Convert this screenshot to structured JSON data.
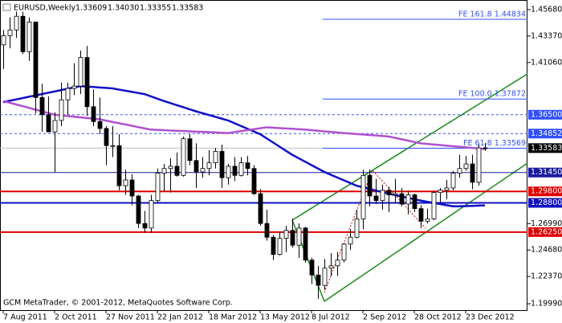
{
  "chart_data": {
    "type": "candlestick",
    "title": "EURUSD,Weekly",
    "title_values": [
      "1.33609",
      "1.34030",
      "1.33355",
      "1.33583"
    ],
    "footer": "GCM MetaTrader, © 2001-2012, MetaQuotes Software Corp.",
    "categories": [
      "7 Aug 2011",
      null,
      null,
      null,
      null,
      null,
      null,
      null,
      "2 Oct 2011",
      null,
      null,
      null,
      null,
      null,
      null,
      null,
      "27 Nov 2011",
      null,
      null,
      null,
      null,
      null,
      null,
      null,
      "22 Jan 2012",
      null,
      null,
      null,
      null,
      null,
      null,
      null,
      "18 Mar 2012",
      null,
      null,
      null,
      null,
      null,
      null,
      null,
      "13 May 2012",
      null,
      null,
      null,
      null,
      null,
      null,
      null,
      "8 Jul 2012",
      null,
      null,
      null,
      null,
      null,
      null,
      null,
      "2 Sep 2012",
      null,
      null,
      null,
      null,
      null,
      null,
      null,
      "28 Oct 2012",
      null,
      null,
      null,
      null,
      null,
      null,
      null,
      "23 Dec 2012",
      null,
      null,
      null
    ],
    "open": [
      1.426,
      1.434,
      1.439,
      1.451,
      1.42,
      1.446,
      1.38,
      1.365,
      1.35,
      1.36,
      1.378,
      1.388,
      1.39,
      1.415,
      1.372,
      1.359,
      1.353,
      1.338,
      1.338,
      1.303,
      1.308,
      1.294,
      1.27,
      1.266,
      1.29,
      1.314,
      1.318,
      1.32,
      1.312,
      1.344,
      1.325,
      1.315,
      1.318,
      1.323,
      1.333,
      1.31,
      1.32,
      1.312,
      1.323,
      1.318,
      1.296,
      1.27,
      1.258,
      1.243,
      1.257,
      1.264,
      1.251,
      1.266,
      1.238,
      1.225,
      1.216,
      1.231,
      1.233,
      1.238,
      1.252,
      1.258,
      1.274,
      1.312,
      1.294,
      1.29,
      1.299,
      1.295,
      1.296,
      1.287,
      1.295,
      1.283,
      1.272,
      1.274,
      1.297,
      1.299,
      1.301,
      1.314,
      1.318,
      1.322,
      1.306,
      1.33609
    ],
    "high": [
      1.439,
      1.45,
      1.455,
      1.455,
      1.45,
      1.446,
      1.392,
      1.381,
      1.367,
      1.393,
      1.393,
      1.41,
      1.421,
      1.425,
      1.387,
      1.38,
      1.355,
      1.355,
      1.348,
      1.317,
      1.313,
      1.295,
      1.281,
      1.295,
      1.318,
      1.322,
      1.327,
      1.332,
      1.346,
      1.348,
      1.34,
      1.328,
      1.334,
      1.336,
      1.339,
      1.322,
      1.328,
      1.328,
      1.329,
      1.321,
      1.3,
      1.282,
      1.26,
      1.263,
      1.268,
      1.274,
      1.27,
      1.267,
      1.24,
      1.233,
      1.239,
      1.244,
      1.245,
      1.253,
      1.265,
      1.282,
      1.317,
      1.317,
      1.309,
      1.304,
      1.302,
      1.309,
      1.301,
      1.299,
      1.296,
      1.286,
      1.283,
      1.298,
      1.301,
      1.308,
      1.316,
      1.33,
      1.329,
      1.33,
      1.339,
      1.3403
    ],
    "low": [
      1.405,
      1.423,
      1.432,
      1.418,
      1.412,
      1.366,
      1.35,
      1.35,
      1.315,
      1.355,
      1.365,
      1.382,
      1.383,
      1.364,
      1.355,
      1.348,
      1.321,
      1.328,
      1.299,
      1.295,
      1.286,
      1.266,
      1.262,
      1.262,
      1.288,
      1.298,
      1.297,
      1.311,
      1.311,
      1.321,
      1.301,
      1.31,
      1.312,
      1.318,
      1.301,
      1.304,
      1.307,
      1.311,
      1.312,
      1.295,
      1.268,
      1.255,
      1.238,
      1.242,
      1.245,
      1.249,
      1.24,
      1.236,
      1.217,
      1.204,
      1.212,
      1.224,
      1.224,
      1.236,
      1.247,
      1.257,
      1.265,
      1.285,
      1.287,
      1.282,
      1.28,
      1.288,
      1.285,
      1.278,
      1.28,
      1.266,
      1.27,
      1.273,
      1.288,
      1.291,
      1.299,
      1.31,
      1.316,
      1.3,
      1.303,
      1.33355
    ],
    "close": [
      1.434,
      1.439,
      1.451,
      1.42,
      1.446,
      1.38,
      1.365,
      1.35,
      1.36,
      1.378,
      1.388,
      1.39,
      1.415,
      1.372,
      1.359,
      1.353,
      1.338,
      1.338,
      1.303,
      1.308,
      1.294,
      1.27,
      1.266,
      1.29,
      1.314,
      1.318,
      1.32,
      1.312,
      1.344,
      1.325,
      1.315,
      1.318,
      1.323,
      1.333,
      1.31,
      1.32,
      1.312,
      1.323,
      1.318,
      1.296,
      1.27,
      1.258,
      1.243,
      1.257,
      1.264,
      1.251,
      1.266,
      1.238,
      1.225,
      1.216,
      1.231,
      1.233,
      1.238,
      1.252,
      1.258,
      1.274,
      1.312,
      1.294,
      1.29,
      1.299,
      1.295,
      1.296,
      1.287,
      1.295,
      1.283,
      1.272,
      1.274,
      1.297,
      1.299,
      1.301,
      1.314,
      1.318,
      1.322,
      1.306,
      1.336,
      1.33583
    ],
    "overlays": [
      {
        "color": "#1010c8",
        "values": [
          1.376,
          1.3772,
          1.3783,
          1.3795,
          1.3807,
          1.3818,
          1.383,
          1.3842,
          1.3853,
          1.3865,
          1.3877,
          1.3888,
          1.39,
          1.3896,
          1.3892,
          1.3888,
          1.3884,
          1.388,
          1.387,
          1.386,
          1.385,
          1.384,
          1.383,
          1.381,
          1.379,
          1.377,
          1.3752,
          1.3734,
          1.3716,
          1.3698,
          1.368,
          1.3664,
          1.3648,
          1.3632,
          1.3616,
          1.36,
          1.3576,
          1.3552,
          1.3528,
          1.3504,
          1.348,
          1.3444,
          1.3408,
          1.3372,
          1.3336,
          1.33,
          1.327,
          1.324,
          1.321,
          1.318,
          1.315,
          1.3126,
          1.3102,
          1.3078,
          1.3054,
          1.303,
          1.3016,
          1.3002,
          1.2988,
          1.2974,
          1.296,
          1.2948,
          1.2936,
          1.2924,
          1.2912,
          1.29,
          1.289,
          1.288,
          1.287,
          1.286,
          1.285,
          1.285,
          1.2852,
          1.2854,
          1.2856,
          1.2858
        ]
      },
      {
        "color": "#b050d0",
        "values": [
          1.377,
          1.3755,
          1.374,
          1.3725,
          1.371,
          1.3695,
          1.368,
          1.3665,
          1.365,
          1.3644,
          1.3639,
          1.3633,
          1.3627,
          1.3621,
          1.3616,
          1.361,
          1.3599,
          1.3587,
          1.3576,
          1.3565,
          1.3554,
          1.3542,
          1.3531,
          1.352,
          1.3518,
          1.3515,
          1.3512,
          1.351,
          1.3508,
          1.3505,
          1.3502,
          1.35,
          1.3498,
          1.3495,
          1.3492,
          1.349,
          1.3498,
          1.3507,
          1.3515,
          1.3523,
          1.3532,
          1.354,
          1.3537,
          1.3533,
          1.353,
          1.3527,
          1.3523,
          1.352,
          1.3515,
          1.351,
          1.3505,
          1.35,
          1.3495,
          1.349,
          1.3486,
          1.3481,
          1.3477,
          1.3473,
          1.3469,
          1.3464,
          1.346,
          1.3448,
          1.3436,
          1.3424,
          1.3412,
          1.34,
          1.3395,
          1.339,
          1.3385,
          1.338,
          1.3375,
          1.337,
          1.3365,
          1.336,
          1.3355,
          1.335
        ]
      }
    ],
    "levels": [
      {
        "value": 1.365,
        "label": "1.36500",
        "color": "#3050ff",
        "style": "dashed",
        "width": 1
      },
      {
        "value": 1.34852,
        "label": "1.34852",
        "color": "#3050ff",
        "style": "dashed",
        "width": 1
      },
      {
        "value": 1.33583,
        "label": "1.33583",
        "color": "#000000",
        "style": "solid",
        "width": 1
      },
      {
        "value": 1.3145,
        "label": "1.31450",
        "color": "#1a1aa0",
        "style": "solid",
        "width": 1
      },
      {
        "value": 1.298,
        "label": "1.29800",
        "color": "#e00000",
        "style": "solid",
        "width": 2
      },
      {
        "value": 1.288,
        "label": "1.28800",
        "color": "#1010c0",
        "style": "solid",
        "width": 2
      },
      {
        "value": 1.2625,
        "label": "1.26250",
        "color": "#e00000",
        "style": "solid",
        "width": 2
      }
    ],
    "fib_levels": [
      {
        "value": 1.44834,
        "label": "FE 161.8 1.44834"
      },
      {
        "value": 1.37872,
        "label": "FE 100.0 1.37872"
      },
      {
        "value": 1.33569,
        "label": "FE 61.8 1.33569"
      }
    ],
    "fib_color": "#3050ff",
    "bull_color": "#ffffff",
    "bear_color": "#000000",
    "ylim": [
      1.1943,
      1.4652
    ],
    "yticks": [
      {
        "value": 1.4568,
        "label": "1.45680"
      },
      {
        "value": 1.4337,
        "label": "1.43370"
      },
      {
        "value": 1.4106,
        "label": "1.41060"
      },
      {
        "value": 1.2699,
        "label": "1.26990"
      },
      {
        "value": 1.2468,
        "label": "1.24680"
      },
      {
        "value": 1.2237,
        "label": "1.22370"
      },
      {
        "value": 1.1999,
        "label": "1.19990"
      }
    ]
  }
}
